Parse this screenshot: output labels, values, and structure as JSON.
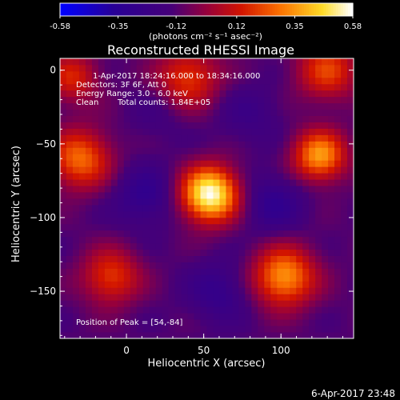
{
  "chart_data": {
    "type": "heatmap",
    "title": "Reconstructed RHESSI Image",
    "xlabel": "Heliocentric X (arcsec)",
    "ylabel": "Heliocentric Y (arcsec)",
    "xlim": [
      -43,
      147
    ],
    "ylim": [
      -182,
      8
    ],
    "xticks": [
      0,
      50,
      100
    ],
    "yticks": [
      0,
      -50,
      -100,
      -150
    ],
    "colorbar": {
      "ticks": [
        "-0.58",
        "-0.35",
        "-0.12",
        "0.12",
        "0.35",
        "0.58"
      ],
      "range": [
        -0.58,
        0.58
      ],
      "units": "(photons cm⁻² s⁻¹ asec⁻²)"
    },
    "sources": [
      {
        "x": 54,
        "y": -84,
        "amp": 0.58,
        "w": 13
      },
      {
        "x": 125,
        "y": -58,
        "amp": 0.36,
        "w": 12
      },
      {
        "x": 102,
        "y": -140,
        "amp": 0.36,
        "w": 14
      },
      {
        "x": -30,
        "y": -60,
        "amp": 0.28,
        "w": 14
      },
      {
        "x": -10,
        "y": -140,
        "amp": 0.2,
        "w": 13
      },
      {
        "x": 40,
        "y": -5,
        "amp": 0.2,
        "w": 14
      },
      {
        "x": 130,
        "y": 0,
        "amp": 0.2,
        "w": 14
      },
      {
        "x": -35,
        "y": -5,
        "amp": 0.15,
        "w": 12
      },
      {
        "x": 12,
        "y": -85,
        "amp": -0.3,
        "w": 14
      },
      {
        "x": 95,
        "y": -90,
        "amp": -0.3,
        "w": 14
      },
      {
        "x": 60,
        "y": -150,
        "amp": -0.28,
        "w": 14
      },
      {
        "x": 80,
        "y": -30,
        "amp": -0.22,
        "w": 14
      },
      {
        "x": 20,
        "y": -30,
        "amp": -0.18,
        "w": 13
      }
    ],
    "peak": [
      54,
      -84
    ]
  },
  "annotations": {
    "time_range": "1-Apr-2017 18:24:16.000 to 18:34:16.000",
    "detectors": "Detectors: 3F 6F, Att 0",
    "energy": "Energy Range: 3.0 - 6.0 keV",
    "method": "Clean",
    "counts": "Total counts: 1.84E+05",
    "peak": "Position of Peak = [54,-84]"
  },
  "footer_date": "6-Apr-2017 23:48"
}
